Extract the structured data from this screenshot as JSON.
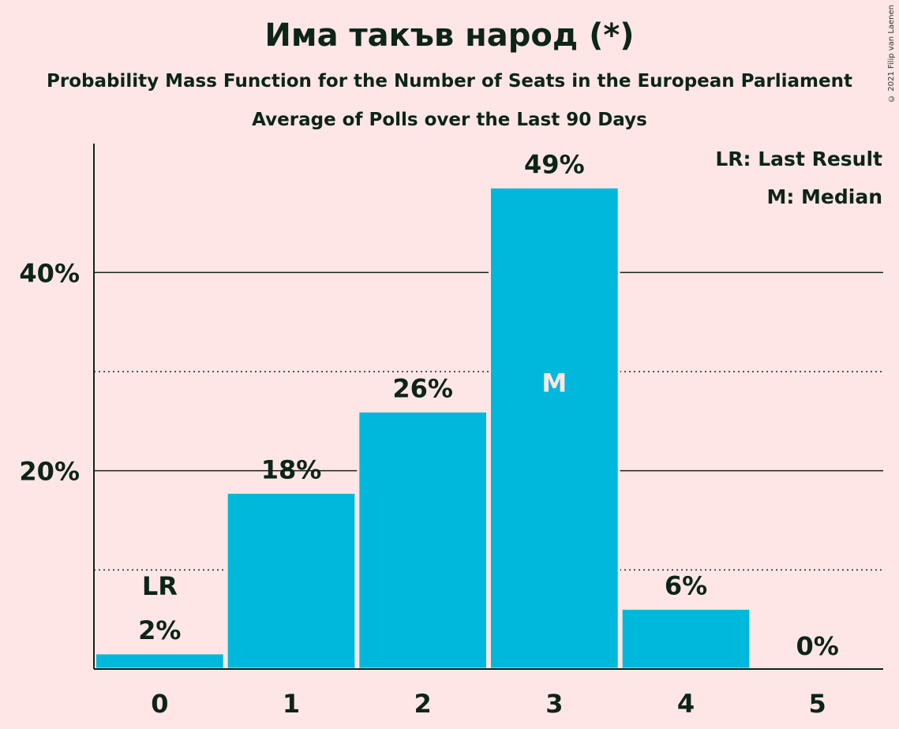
{
  "header": {
    "title": "Има такъв народ (*)",
    "subtitle": "Probability Mass Function for the Number of Seats in the European Parliament",
    "subtitle2": "Average of Polls over the Last 90 Days",
    "copyright": "© 2021 Filip van Laenen"
  },
  "legend": {
    "last_result": "LR: Last Result",
    "median": "M: Median"
  },
  "colors": {
    "background": "#ffe6e6",
    "bar": "#00b8dc",
    "text": "#0d2418"
  },
  "chart_data": {
    "type": "bar",
    "categories": [
      "0",
      "1",
      "2",
      "3",
      "4",
      "5"
    ],
    "values": [
      1.6,
      17.8,
      26.0,
      48.6,
      6.1,
      0.0
    ],
    "data_labels": [
      "2%",
      "18%",
      "26%",
      "49%",
      "6%",
      "0%"
    ],
    "ylim": [
      0,
      53
    ],
    "yticks": [
      {
        "value": 20,
        "label": "20%"
      },
      {
        "value": 40,
        "label": "40%"
      }
    ],
    "minor_gridlines": [
      10,
      30
    ],
    "last_result_index": 0,
    "last_result_marker": "LR",
    "median_index": 3,
    "median_marker": "M",
    "legend_position": "top-right",
    "xlabel": "",
    "ylabel": ""
  }
}
